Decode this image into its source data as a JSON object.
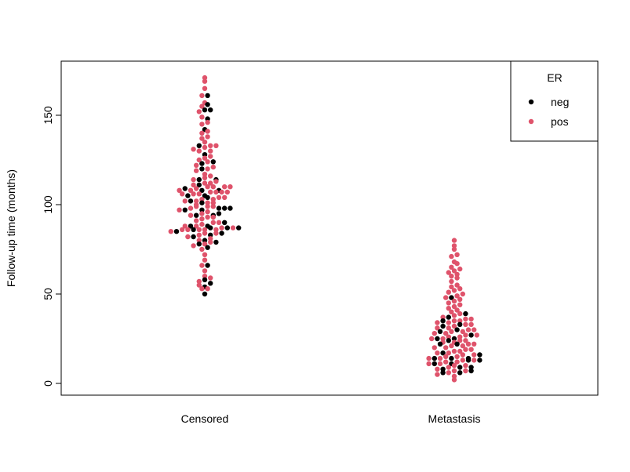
{
  "chart_data": {
    "type": "scatter",
    "subtype": "beeswarm",
    "title": "",
    "xlabel": "",
    "ylabel": "Follow-up time (months)",
    "categories": [
      "Censored",
      "Metastasis"
    ],
    "ylim": [
      -6,
      180
    ],
    "yticks": [
      0,
      50,
      100,
      150
    ],
    "grid": false,
    "legend": {
      "title": "ER",
      "position": "top-right",
      "entries": [
        {
          "label": "neg",
          "color": "#000000"
        },
        {
          "label": "pos",
          "color": "#DF536B"
        }
      ]
    },
    "series": [
      {
        "name": "neg",
        "color": "#000000",
        "points": [
          {
            "category": "Censored",
            "y": [
              161,
              156,
              153,
              153,
              148,
              142,
              133,
              128,
              124,
              123,
              120,
              114,
              114,
              111,
              108,
              108,
              109,
              105,
              105,
              104,
              102,
              101,
              98,
              98,
              98,
              97,
              97,
              95,
              94,
              94,
              90,
              88,
              88,
              87,
              87,
              87,
              86,
              85,
              84,
              83,
              82,
              80,
              79,
              78,
              76,
              66,
              58,
              56,
              54,
              50
            ]
          },
          {
            "category": "Metastasis",
            "y": [
              48,
              39,
              37,
              35,
              33,
              32,
              30,
              29,
              27,
              25,
              25,
              24,
              22,
              22,
              17,
              16,
              14,
              14,
              14,
              13,
              13,
              11,
              11,
              9,
              9,
              8,
              7,
              6,
              6
            ]
          }
        ]
      },
      {
        "name": "pos",
        "color": "#DF536B",
        "points": [
          {
            "category": "Censored",
            "y": [
              171,
              169,
              165,
              161,
              157,
              155,
              152,
              149,
              146,
              145,
              141,
              140,
              138,
              137,
              135,
              133,
              133,
              132,
              131,
              130,
              130,
              127,
              126,
              125,
              124,
              122,
              121,
              120,
              119,
              117,
              116,
              115,
              114,
              113,
              112,
              112,
              111,
              110,
              110,
              110,
              110,
              109,
              108,
              108,
              107,
              107,
              107,
              107,
              106,
              106,
              106,
              104,
              104,
              103,
              103,
              102,
              102,
              101,
              101,
              100,
              99,
              99,
              99,
              98,
              97,
              96,
              95,
              94,
              93,
              93,
              92,
              91,
              90,
              90,
              89,
              88,
              88,
              87,
              87,
              86,
              86,
              86,
              86,
              86,
              85,
              84,
              84,
              83,
              82,
              81,
              80,
              79,
              78,
              77,
              75,
              72,
              69,
              66,
              63,
              60,
              59,
              57,
              55,
              53,
              53
            ]
          },
          {
            "category": "Metastasis",
            "y": [
              80,
              77,
              75,
              72,
              71,
              68,
              67,
              65,
              64,
              63,
              62,
              61,
              60,
              59,
              57,
              55,
              54,
              53,
              52,
              51,
              50,
              49,
              48,
              47,
              46,
              45,
              44,
              43,
              42,
              41,
              40,
              39,
              38,
              37,
              36,
              36,
              35,
              35,
              34,
              34,
              33,
              33,
              32,
              31,
              31,
              30,
              30,
              29,
              29,
              28,
              28,
              27,
              27,
              26,
              26,
              25,
              25,
              24,
              24,
              23,
              23,
              22,
              22,
              21,
              21,
              20,
              20,
              19,
              19,
              18,
              18,
              17,
              17,
              16,
              16,
              15,
              15,
              14,
              14,
              13,
              13,
              12,
              12,
              11,
              11,
              10,
              10,
              9,
              8,
              7,
              7,
              6,
              5,
              4,
              2
            ]
          }
        ]
      }
    ]
  }
}
